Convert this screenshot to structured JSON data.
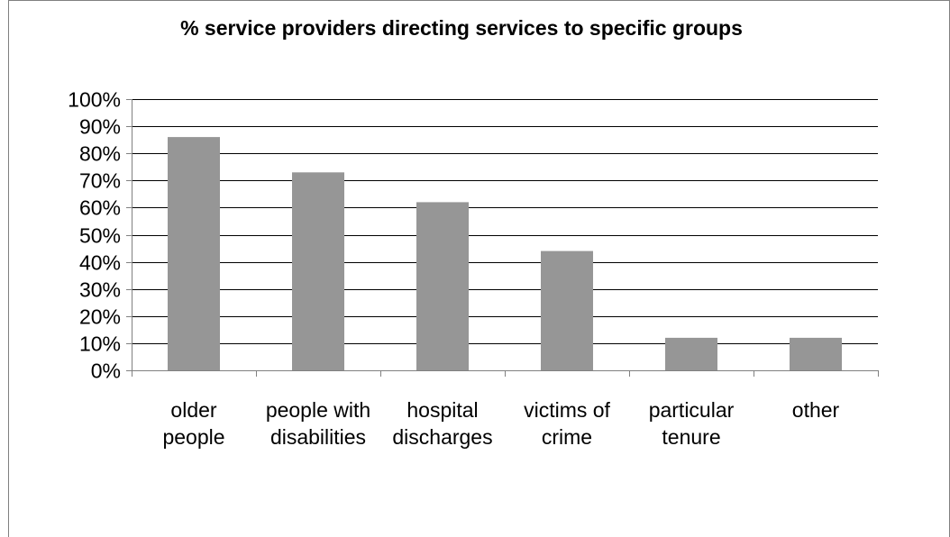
{
  "chart_data": {
    "type": "bar",
    "title": "% service providers directing services to specific groups",
    "xlabel": "",
    "ylabel": "",
    "categories": [
      [
        "older",
        "people"
      ],
      [
        "people with",
        "disabilities"
      ],
      [
        "hospital",
        "discharges"
      ],
      [
        "victims of",
        "crime"
      ],
      [
        "particular",
        "tenure"
      ],
      [
        "other"
      ]
    ],
    "values": [
      86,
      73,
      62,
      44,
      12,
      12
    ],
    "ylim": [
      0,
      100
    ],
    "yticks": [
      "0%",
      "10%",
      "20%",
      "30%",
      "40%",
      "50%",
      "60%",
      "70%",
      "80%",
      "90%",
      "100%"
    ],
    "grid": true,
    "legend": "none",
    "colors": {
      "bar": "#969696",
      "grid": "#000000",
      "axis": "#808080"
    }
  }
}
